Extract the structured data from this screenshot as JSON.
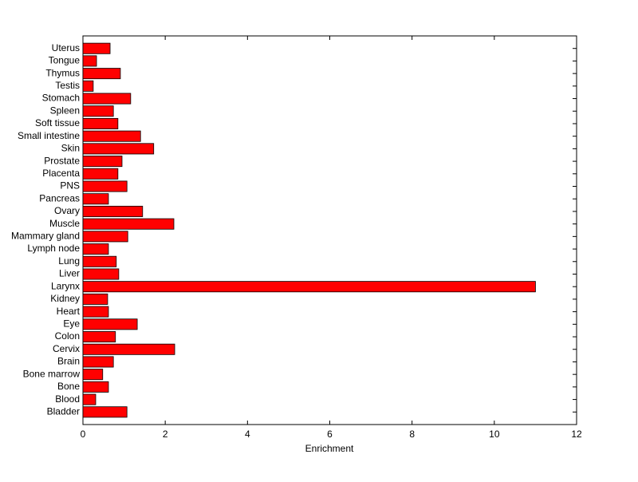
{
  "chart_data": {
    "type": "barh",
    "xlabel": "Enrichment",
    "categories": [
      "Bladder",
      "Blood",
      "Bone",
      "Bone marrow",
      "Brain",
      "Cervix",
      "Colon",
      "Eye",
      "Heart",
      "Kidney",
      "Larynx",
      "Liver",
      "Lung",
      "Lymph node",
      "Mammary gland",
      "Muscle",
      "Ovary",
      "Pancreas",
      "PNS",
      "Placenta",
      "Prostate",
      "Skin",
      "Small intestine",
      "Soft tissue",
      "Spleen",
      "Stomach",
      "Testis",
      "Thymus",
      "Tongue",
      "Uterus"
    ],
    "values": [
      1.07,
      0.31,
      0.62,
      0.48,
      0.74,
      2.23,
      0.79,
      1.32,
      0.62,
      0.6,
      11.0,
      0.87,
      0.81,
      0.62,
      1.09,
      2.21,
      1.45,
      0.62,
      1.07,
      0.85,
      0.95,
      1.72,
      1.4,
      0.85,
      0.74,
      1.16,
      0.25,
      0.91,
      0.33,
      0.66
    ],
    "color": "#ff0000",
    "xlim": [
      0,
      12
    ],
    "xticks": [
      0,
      2,
      4,
      6,
      8,
      10,
      12
    ]
  }
}
